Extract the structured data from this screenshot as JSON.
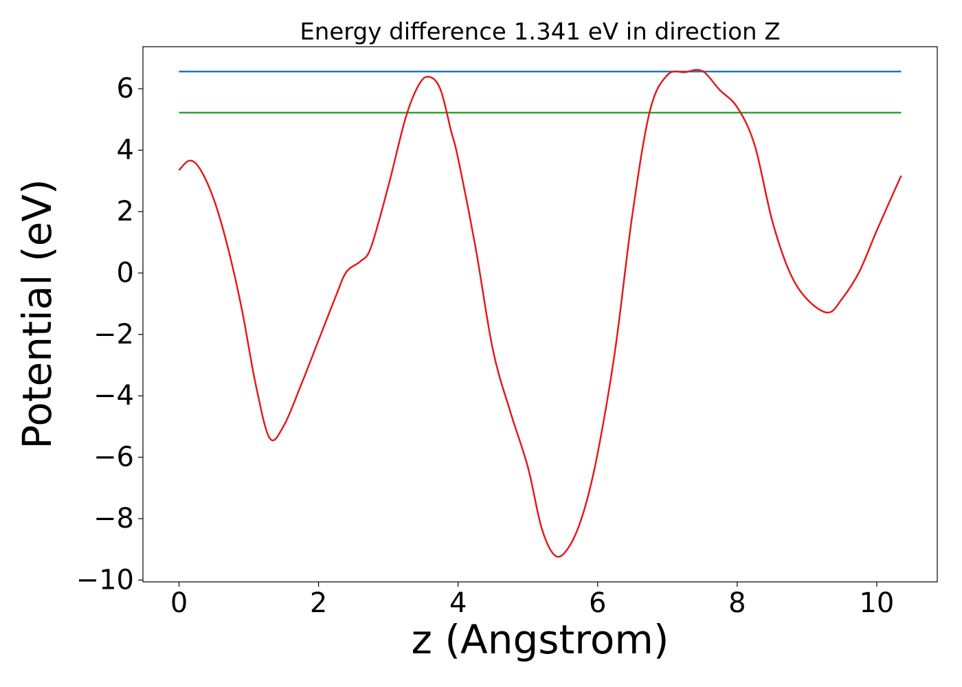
{
  "chart_data": {
    "type": "line",
    "title": "Energy difference 1.341 eV in direction Z",
    "x_label": "z (Angstrom)",
    "y_label": "Potential (eV)",
    "xlim": [
      -0.5175,
      10.8675
    ],
    "ylim": [
      -10.06,
      7.37
    ],
    "xticks": [
      0,
      2,
      4,
      6,
      8,
      10
    ],
    "yticks": [
      {
        "value": -10,
        "label": "−10"
      },
      {
        "value": -8,
        "label": "−8"
      },
      {
        "value": -6,
        "label": "−6"
      },
      {
        "value": -4,
        "label": "−4"
      },
      {
        "value": -2,
        "label": "−2"
      },
      0,
      2,
      4,
      6
    ],
    "grid": false,
    "series": [
      {
        "color": "#1f77b4",
        "x": [
          0,
          10.35
        ],
        "values": [
          6.562,
          6.562
        ]
      },
      {
        "color": "#2ca02c",
        "x": [
          0,
          10.35
        ],
        "values": [
          5.221,
          5.221
        ]
      },
      {
        "color": "#e41a1c",
        "x": [
          0,
          0.15,
          0.3,
          0.5,
          0.7,
          0.9,
          1.1,
          1.3,
          1.5,
          1.75,
          2.0,
          2.25,
          2.4,
          2.6,
          2.75,
          3.0,
          3.25,
          3.45,
          3.6,
          3.75,
          3.9,
          4.0,
          4.25,
          4.5,
          4.75,
          5.0,
          5.2,
          5.4,
          5.6,
          5.8,
          6.0,
          6.25,
          6.5,
          6.75,
          7.0,
          7.25,
          7.5,
          7.75,
          8.0,
          8.25,
          8.5,
          8.75,
          9.0,
          9.3,
          9.5,
          9.75,
          10.0,
          10.35
        ],
        "values": [
          3.35,
          3.66,
          3.39,
          2.39,
          0.83,
          -1.18,
          -3.64,
          -5.38,
          -4.98,
          -3.64,
          -2.19,
          -0.74,
          0.04,
          0.38,
          0.83,
          2.83,
          5.07,
          6.18,
          6.38,
          5.96,
          4.62,
          3.73,
          0.83,
          -2.52,
          -4.53,
          -6.32,
          -8.33,
          -9.22,
          -8.88,
          -7.77,
          -5.87,
          -2.52,
          1.94,
          5.29,
          6.45,
          6.54,
          6.58,
          5.96,
          5.4,
          4.17,
          1.72,
          0.04,
          -0.85,
          -1.29,
          -0.85,
          0.04,
          1.38,
          3.17
        ]
      }
    ]
  }
}
